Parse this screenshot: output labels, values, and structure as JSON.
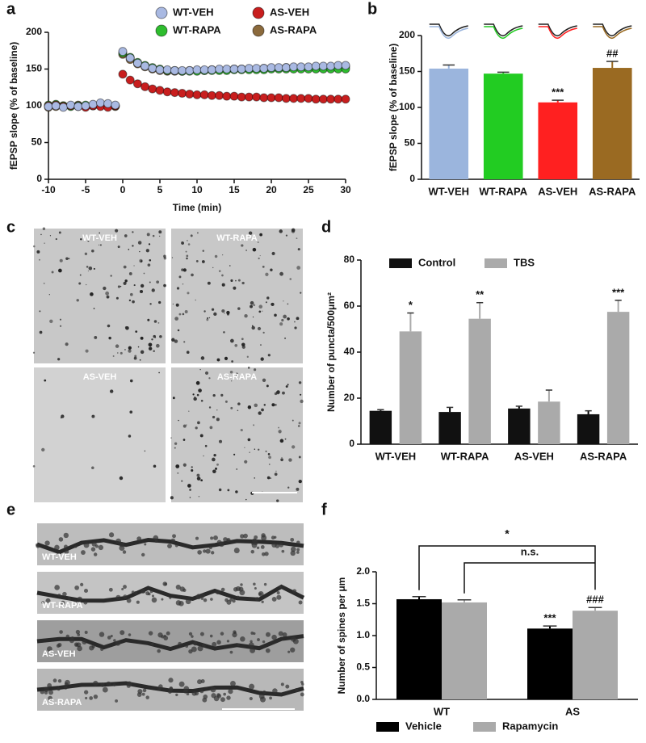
{
  "panel_labels": [
    "a",
    "b",
    "c",
    "d",
    "e",
    "f"
  ],
  "chart_data": [
    {
      "type": "scatter",
      "x": [
        -10,
        -9,
        -8,
        -7,
        -6,
        -5,
        -4,
        -3,
        -2,
        -1,
        0,
        1,
        2,
        3,
        4,
        5,
        6,
        7,
        8,
        9,
        10,
        11,
        12,
        13,
        14,
        15,
        16,
        17,
        18,
        19,
        20,
        21,
        22,
        23,
        24,
        25,
        26,
        27,
        28,
        29,
        30
      ],
      "xlim": [
        -10,
        30
      ],
      "xticks": [
        -10,
        -5,
        0,
        5,
        10,
        15,
        20,
        25,
        30
      ],
      "ylim": [
        0,
        200
      ],
      "yticks": [
        0,
        50,
        100,
        150,
        200
      ],
      "xlabel": "Time (min)",
      "ylabel": "fEPSP slope (% of baseline)",
      "series": [
        {
          "name": "WT-VEH",
          "color": "#a9b9e2",
          "values": [
            99,
            100,
            98,
            101,
            99,
            100,
            102,
            104,
            103,
            101,
            174,
            165,
            158,
            154,
            151,
            149,
            149,
            148,
            148,
            148,
            149,
            149,
            149,
            150,
            150,
            150,
            150,
            151,
            151,
            151,
            152,
            152,
            152,
            153,
            153,
            153,
            154,
            154,
            154,
            155,
            155
          ]
        },
        {
          "name": "AS-VEH",
          "color": "#c81e1e",
          "values": [
            100,
            101,
            99,
            100,
            99,
            98,
            100,
            99,
            98,
            100,
            143,
            135,
            130,
            126,
            123,
            121,
            119,
            118,
            117,
            116,
            115,
            115,
            114,
            114,
            113,
            113,
            112,
            112,
            112,
            111,
            111,
            111,
            110,
            110,
            110,
            110,
            109,
            109,
            109,
            109,
            109
          ]
        },
        {
          "name": "WT-RAPA",
          "color": "#2ebd2e",
          "values": [
            101,
            102,
            100,
            99,
            100,
            101,
            100,
            102,
            101,
            100,
            172,
            166,
            159,
            155,
            152,
            150,
            148,
            148,
            147,
            147,
            147,
            148,
            148,
            148,
            148,
            149,
            149,
            149,
            149,
            149,
            150,
            150,
            150,
            150,
            150,
            150,
            150,
            150,
            150,
            150,
            150
          ]
        },
        {
          "name": "AS-RAPA",
          "color": "#8b6a3c",
          "values": [
            98,
            99,
            100,
            100,
            101,
            99,
            100,
            101,
            100,
            99,
            170,
            163,
            157,
            153,
            150,
            148,
            147,
            147,
            147,
            148,
            148,
            148,
            149,
            149,
            149,
            150,
            150,
            150,
            150,
            151,
            151,
            151,
            152,
            152,
            152,
            152,
            153,
            153,
            153,
            153,
            153
          ]
        }
      ]
    },
    {
      "type": "bar",
      "categories": [
        "WT-VEH",
        "WT-RAPA",
        "AS-VEH",
        "AS-RAPA"
      ],
      "values": [
        154,
        147,
        107,
        155
      ],
      "errors": [
        5,
        2,
        3,
        9
      ],
      "colors": [
        "#9bb5dd",
        "#22cc22",
        "#ff2020",
        "#9a6a22"
      ],
      "annotations": [
        null,
        null,
        "***",
        "##"
      ],
      "ylim": [
        0,
        200
      ],
      "yticks": [
        0,
        50,
        100,
        150,
        200
      ],
      "ylabel": "fEPSP slope (% of baseline)"
    },
    {
      "type": "bar",
      "categories": [
        "WT-VEH",
        "WT-RAPA",
        "AS-VEH",
        "AS-RAPA"
      ],
      "series": [
        {
          "name": "Control",
          "color": "#111111",
          "values": [
            14.5,
            14,
            15.5,
            13
          ],
          "errors": [
            0.5,
            2,
            1,
            1.5
          ]
        },
        {
          "name": "TBS",
          "color": "#aaaaaa",
          "values": [
            49,
            54.5,
            18.5,
            57.5
          ],
          "errors": [
            8,
            7,
            5,
            5
          ],
          "annotations": [
            "*",
            "**",
            null,
            "***"
          ]
        }
      ],
      "ylim": [
        0,
        80
      ],
      "yticks": [
        0,
        20,
        40,
        60,
        80
      ],
      "ylabel": "Number of puncta/500μm²"
    },
    {
      "type": "bar",
      "categories": [
        "WT",
        "AS"
      ],
      "series": [
        {
          "name": "Vehicle",
          "color": "#000000",
          "values": [
            1.57,
            1.11
          ],
          "errors": [
            0.04,
            0.04
          ],
          "annotations": [
            null,
            "***"
          ]
        },
        {
          "name": "Rapamycin",
          "color": "#aaaaaa",
          "values": [
            1.52,
            1.39
          ],
          "errors": [
            0.04,
            0.05
          ],
          "annotations": [
            null,
            "###"
          ]
        }
      ],
      "ylim": [
        0,
        2
      ],
      "yticks": [
        {
          "value": 0,
          "label": "0.0"
        },
        {
          "value": 0.5,
          "label": "0.5"
        },
        {
          "value": 1,
          "label": "1.0"
        },
        {
          "value": 1.5,
          "label": "1.5"
        },
        {
          "value": 2,
          "label": "2.0"
        }
      ],
      "ylabel": "Number of spines per μm",
      "comparisons": [
        "*",
        "n.s."
      ]
    }
  ],
  "micrographs": {
    "c": [
      "WT-VEH",
      "WT-RAPA",
      "AS-VEH",
      "AS-RAPA"
    ],
    "e": [
      "WT-VEH",
      "WT-RAPA",
      "AS-VEH",
      "AS-RAPA"
    ]
  }
}
